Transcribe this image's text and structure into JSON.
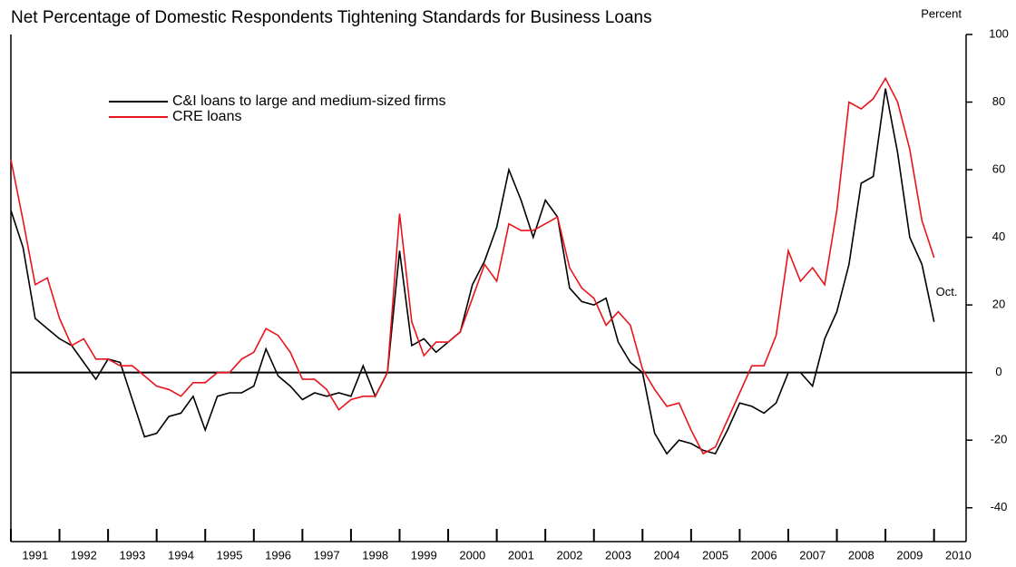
{
  "chart_data": {
    "type": "line",
    "title": "Net Percentage of Domestic Respondents Tightening Standards for Business Loans",
    "y_axis_label": "Percent",
    "annotation": "Oct.",
    "x": [
      1991,
      1991.25,
      1991.5,
      1991.75,
      1992,
      1992.25,
      1992.5,
      1992.75,
      1993,
      1993.25,
      1993.5,
      1993.75,
      1994,
      1994.25,
      1994.5,
      1994.75,
      1995,
      1995.25,
      1995.5,
      1995.75,
      1996,
      1996.25,
      1996.5,
      1996.75,
      1997,
      1997.25,
      1997.5,
      1997.75,
      1998,
      1998.25,
      1998.5,
      1998.75,
      1999,
      1999.25,
      1999.5,
      1999.75,
      2000,
      2000.25,
      2000.5,
      2000.75,
      2001,
      2001.25,
      2001.5,
      2001.75,
      2002,
      2002.25,
      2002.5,
      2002.75,
      2003,
      2003.25,
      2003.5,
      2003.75,
      2004,
      2004.25,
      2004.5,
      2004.75,
      2005,
      2005.25,
      2005.5,
      2005.75,
      2006,
      2006.25,
      2006.5,
      2006.75,
      2007,
      2007.25,
      2007.5,
      2007.75,
      2008,
      2008.25,
      2008.5,
      2008.75,
      2009,
      2009.25,
      2009.5,
      2009.75,
      2010
    ],
    "series": [
      {
        "name": "C&I loans to large and medium-sized firms",
        "color": "#000000",
        "values": [
          48,
          37,
          16,
          13,
          10,
          8,
          3,
          -2,
          4,
          3,
          -8,
          -19,
          -18,
          -13,
          -12,
          -7,
          -17,
          -7,
          -6,
          -6,
          -4,
          7,
          -1,
          -4,
          -8,
          -6,
          -7,
          -6,
          -7,
          2,
          -7,
          0,
          36,
          8,
          10,
          6,
          9,
          12,
          26,
          33,
          43,
          60,
          51,
          40,
          51,
          46,
          25,
          21,
          20,
          22,
          9,
          3,
          0,
          -18,
          -24,
          -20,
          -21,
          -23,
          -24,
          -17,
          -9,
          -10,
          -12,
          -9,
          0,
          0,
          -4,
          10,
          18,
          32,
          56,
          58,
          84,
          65,
          40,
          32,
          15
        ]
      },
      {
        "name": "CRE loans",
        "color": "#e8141c",
        "values": [
          63,
          45,
          26,
          28,
          16,
          8,
          10,
          4,
          4,
          2,
          2,
          -1,
          -4,
          -5,
          -7,
          -3,
          -3,
          0,
          0,
          4,
          6,
          13,
          11,
          6,
          -2,
          -2,
          -5,
          -11,
          -8,
          -7,
          -7,
          0,
          47,
          15,
          5,
          9,
          9,
          12,
          22,
          32,
          27,
          44,
          42,
          42,
          44,
          46,
          31,
          25,
          22,
          14,
          18,
          14,
          1,
          -5,
          -10,
          -9,
          -17,
          -24,
          -22,
          -14,
          -6,
          2,
          2,
          11,
          36,
          27,
          31,
          26,
          48,
          80,
          78,
          81,
          87,
          80,
          66,
          45,
          34
        ]
      }
    ],
    "xlim": [
      1991,
      2010.66
    ],
    "xticks": [
      1991,
      1992,
      1993,
      1994,
      1995,
      1996,
      1997,
      1998,
      1999,
      2000,
      2001,
      2002,
      2003,
      2004,
      2005,
      2006,
      2007,
      2008,
      2009,
      2010
    ],
    "ylim": [
      -50,
      100
    ],
    "yticks": [
      -40,
      -20,
      0,
      20,
      40,
      60,
      80,
      100
    ]
  }
}
